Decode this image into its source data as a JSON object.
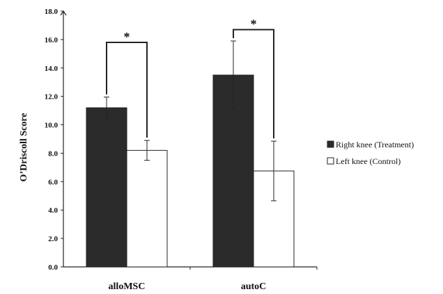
{
  "chart_data": {
    "type": "bar",
    "title": "",
    "xlabel": "",
    "ylabel": "O’Driscoll Score",
    "ylim": [
      0,
      18
    ],
    "yticks": [
      0,
      2,
      4,
      6,
      8,
      10,
      12,
      14,
      16,
      18
    ],
    "ytick_labels": [
      "0.0",
      "2.0",
      "4.0",
      "6.0",
      "8.0",
      "10.0",
      "12.0",
      "14.0",
      "16.0",
      "18.0"
    ],
    "categories": [
      "alloMSC",
      "autoC"
    ],
    "series": [
      {
        "name": "Right knee (Treatment)",
        "color": "#2b2b2b",
        "values": [
          11.2,
          13.5
        ],
        "error": [
          0.75,
          2.4
        ]
      },
      {
        "name": "Left knee (Control)",
        "color": "#ffffff",
        "values": [
          8.2,
          6.75
        ],
        "error": [
          0.7,
          2.1
        ]
      }
    ],
    "significance": [
      {
        "category": "alloMSC",
        "label": "*",
        "level": 15.8
      },
      {
        "category": "autoC",
        "label": "*",
        "level": 16.7
      }
    ],
    "legend_position": "right",
    "grid": false
  }
}
